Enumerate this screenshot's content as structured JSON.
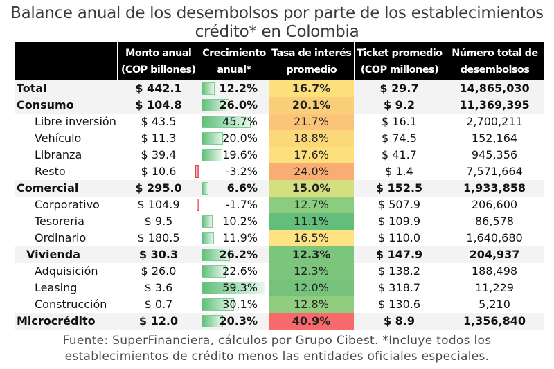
{
  "title_line1": "Balance anual de los desembolsos por parte de los establecimientos",
  "title_line2": "crédito* en Colombia",
  "footer_line1": "Fuente: SuperFinanciera, cálculos por Grupo Cibest. *Incluye todos los",
  "footer_line2": "establecimientos de crédito menos las entidades oficiales especiales.",
  "headers": [
    {
      "line1": "",
      "line2": ""
    },
    {
      "line1": "Monto anual",
      "line2": "(COP billones)"
    },
    {
      "line1": "Crecimiento",
      "line2": "anual*"
    },
    {
      "line1": "Tasa de interés",
      "line2": "promedio"
    },
    {
      "line1": "Ticket promedio",
      "line2": "(COP millones)"
    },
    {
      "line1": "Número total de",
      "line2": "desembolsos"
    }
  ],
  "colors": {
    "header_bg": "#000000",
    "main_row_bg": "#f3f3f3",
    "bar_positive": "#5fbf7a",
    "bar_negative": "#e8505a"
  },
  "rows": [
    {
      "label": "Total",
      "level": "main",
      "monto": "$ 442.1",
      "crecimiento": "12.2%",
      "growth": 12.2,
      "tasa": "16.7%",
      "rate": 16.7,
      "rate_color": "#fde07c",
      "ticket": "$ 29.7",
      "numero": "14,865,030"
    },
    {
      "label": "Consumo",
      "level": "main",
      "monto": "$ 104.8",
      "crecimiento": "26.0%",
      "growth": 26.0,
      "tasa": "20.1%",
      "rate": 20.1,
      "rate_color": "#fbcf7a",
      "ticket": "$ 9.2",
      "numero": "11,369,395"
    },
    {
      "label": "Libre inversión",
      "level": "sub",
      "monto": "$ 43.5",
      "crecimiento": "45.7%",
      "growth": 45.7,
      "tasa": "21.7%",
      "rate": 21.7,
      "rate_color": "#fbc479",
      "ticket": "$ 16.1",
      "numero": "2,700,211"
    },
    {
      "label": "Vehículo",
      "level": "sub",
      "monto": "$ 11.3",
      "crecimiento": "20.0%",
      "growth": 20.0,
      "tasa": "18.8%",
      "rate": 18.8,
      "rate_color": "#fdd87b",
      "ticket": "$ 74.5",
      "numero": "152,164"
    },
    {
      "label": "Libranza",
      "level": "sub",
      "monto": "$ 39.4",
      "crecimiento": "19.6%",
      "growth": 19.6,
      "tasa": "17.6%",
      "rate": 17.6,
      "rate_color": "#fddf7c",
      "ticket": "$ 41.7",
      "numero": "945,356"
    },
    {
      "label": "Resto",
      "level": "sub",
      "monto": "$ 10.6",
      "crecimiento": "-3.2%",
      "growth": -3.2,
      "tasa": "24.0%",
      "rate": 24.0,
      "rate_color": "#f9ad72",
      "ticket": "$ 1.4",
      "numero": "7,571,664"
    },
    {
      "label": "Comercial",
      "level": "main",
      "monto": "$ 295.0",
      "crecimiento": "6.6%",
      "growth": 6.6,
      "tasa": "15.0%",
      "rate": 15.0,
      "rate_color": "#d4e07f",
      "ticket": "$ 152.5",
      "numero": "1,933,858"
    },
    {
      "label": "Corporativo",
      "level": "sub",
      "monto": "$ 104.9",
      "crecimiento": "-1.7%",
      "growth": -1.7,
      "tasa": "12.7%",
      "rate": 12.7,
      "rate_color": "#8ccc7e",
      "ticket": "$ 507.9",
      "numero": "206,600"
    },
    {
      "label": "Tesoreria",
      "level": "sub",
      "monto": "$ 9.5",
      "crecimiento": "10.2%",
      "growth": 10.2,
      "tasa": "11.1%",
      "rate": 11.1,
      "rate_color": "#63be7b",
      "ticket": "$ 109.9",
      "numero": "86,578"
    },
    {
      "label": "Ordinario",
      "level": "sub",
      "monto": "$ 180.5",
      "crecimiento": "11.9%",
      "growth": 11.9,
      "tasa": "16.5%",
      "rate": 16.5,
      "rate_color": "#fee382",
      "ticket": "$ 110.0",
      "numero": "1,640,680"
    },
    {
      "label": "Vivienda",
      "level": "indent",
      "monto": "$ 30.3",
      "crecimiento": "26.2%",
      "growth": 26.2,
      "tasa": "12.3%",
      "rate": 12.3,
      "rate_color": "#7cc57d",
      "ticket": "$ 147.9",
      "numero": "204,937",
      "bold": true
    },
    {
      "label": "Adquisición",
      "level": "sub",
      "monto": "$ 26.0",
      "crecimiento": "22.6%",
      "growth": 22.6,
      "tasa": "12.3%",
      "rate": 12.3,
      "rate_color": "#7cc57d",
      "ticket": "$ 138.2",
      "numero": "188,498"
    },
    {
      "label": "Leasing",
      "level": "sub",
      "monto": "$ 3.6",
      "crecimiento": "59.3%",
      "growth": 59.3,
      "tasa": "12.0%",
      "rate": 12.0,
      "rate_color": "#74c27c",
      "ticket": "$ 318.7",
      "numero": "11,229"
    },
    {
      "label": "Construcción",
      "level": "sub",
      "monto": "$ 0.7",
      "crecimiento": "30.1%",
      "growth": 30.1,
      "tasa": "12.8%",
      "rate": 12.8,
      "rate_color": "#90cd7e",
      "ticket": "$ 130.6",
      "numero": "5,210"
    },
    {
      "label": "Microcrédito",
      "level": "main",
      "monto": "$ 12.0",
      "crecimiento": "20.3%",
      "growth": 20.3,
      "tasa": "40.9%",
      "rate": 40.9,
      "rate_color": "#f8696b",
      "ticket": "$ 8.9",
      "numero": "1,356,840"
    }
  ],
  "chart_data": {
    "type": "table",
    "title": "Balance anual de los desembolsos por parte de los establecimientos crédito* en Colombia",
    "columns": [
      "",
      "Monto anual (COP billones)",
      "Crecimiento anual*",
      "Tasa de interés promedio",
      "Ticket promedio (COP millones)",
      "Número total de desembolsos"
    ],
    "categories": [
      "Total",
      "Consumo",
      "Libre inversión",
      "Vehículo",
      "Libranza",
      "Resto",
      "Comercial",
      "Corporativo",
      "Tesoreria",
      "Ordinario",
      "Vivienda",
      "Adquisición",
      "Leasing",
      "Construcción",
      "Microcrédito"
    ],
    "series": [
      {
        "name": "Monto anual (COP billones)",
        "values": [
          442.1,
          104.8,
          43.5,
          11.3,
          39.4,
          10.6,
          295.0,
          104.9,
          9.5,
          180.5,
          30.3,
          26.0,
          3.6,
          0.7,
          12.0
        ]
      },
      {
        "name": "Crecimiento anual* (%)",
        "values": [
          12.2,
          26.0,
          45.7,
          20.0,
          19.6,
          -3.2,
          6.6,
          -1.7,
          10.2,
          11.9,
          26.2,
          22.6,
          59.3,
          30.1,
          20.3
        ]
      },
      {
        "name": "Tasa de interés promedio (%)",
        "values": [
          16.7,
          20.1,
          21.7,
          18.8,
          17.6,
          24.0,
          15.0,
          12.7,
          11.1,
          16.5,
          12.3,
          12.3,
          12.0,
          12.8,
          40.9
        ]
      },
      {
        "name": "Ticket promedio (COP millones)",
        "values": [
          29.7,
          9.2,
          16.1,
          74.5,
          41.7,
          1.4,
          152.5,
          507.9,
          109.9,
          110.0,
          147.9,
          138.2,
          318.7,
          130.6,
          8.9
        ]
      },
      {
        "name": "Número total de desembolsos",
        "values": [
          14865030,
          11369395,
          2700211,
          152164,
          945356,
          7571664,
          1933858,
          206600,
          86578,
          1640680,
          204937,
          188498,
          11229,
          5210,
          1356840
        ]
      }
    ],
    "annotations": [
      "Fuente: SuperFinanciera, cálculos por Grupo Cibest. *Incluye todos los establecimientos de crédito menos las entidades oficiales especiales."
    ]
  }
}
